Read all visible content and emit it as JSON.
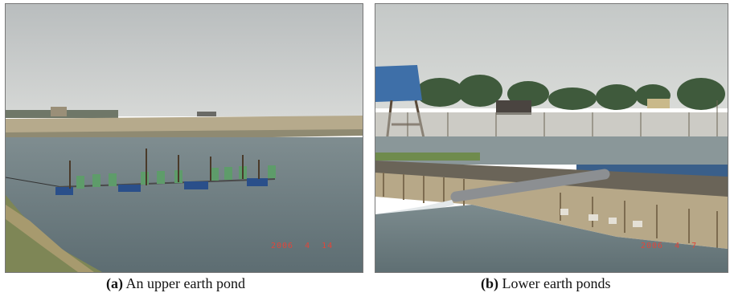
{
  "panels": [
    {
      "label": "(a)",
      "caption": "An upper earth pond",
      "date_stamp": "2006  4  14",
      "scene": "pond-with-paddlewheel-aerators"
    },
    {
      "label": "(b)",
      "caption": "Lower earth ponds",
      "date_stamp": "2006  4  7",
      "scene": "ponds-with-bamboo-fence-and-pipe"
    }
  ],
  "colors": {
    "sky": "#c9cccb",
    "water": "#6c7d82",
    "dyke": "#b4a98c",
    "date_stamp": "#e0463a"
  }
}
